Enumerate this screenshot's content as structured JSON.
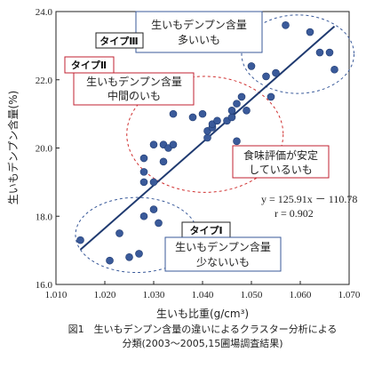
{
  "chart_data": {
    "type": "scatter",
    "xlabel": "生いも比重(g/cm³)",
    "ylabel": "生いもデンプン含量(%)",
    "xlim": [
      1.01,
      1.07
    ],
    "ylim": [
      16.0,
      24.0
    ],
    "xticks": [
      "1.010",
      "1.020",
      "1.030",
      "1.040",
      "1.050",
      "1.060",
      "1.070"
    ],
    "yticks": [
      "16.0",
      "18.0",
      "20.0",
      "22.0",
      "24.0"
    ],
    "grid": false,
    "marker_color": "#3a5a9a",
    "points": [
      [
        1.015,
        17.3
      ],
      [
        1.021,
        16.7
      ],
      [
        1.023,
        17.5
      ],
      [
        1.025,
        16.8
      ],
      [
        1.027,
        16.9
      ],
      [
        1.028,
        18.0
      ],
      [
        1.03,
        18.2
      ],
      [
        1.031,
        17.8
      ],
      [
        1.028,
        19.0
      ],
      [
        1.028,
        19.3
      ],
      [
        1.028,
        19.7
      ],
      [
        1.03,
        19.0
      ],
      [
        1.03,
        20.1
      ],
      [
        1.032,
        20.1
      ],
      [
        1.033,
        20.0
      ],
      [
        1.032,
        19.6
      ],
      [
        1.034,
        20.1
      ],
      [
        1.034,
        21.0
      ],
      [
        1.038,
        20.9
      ],
      [
        1.04,
        21.0
      ],
      [
        1.041,
        20.3
      ],
      [
        1.041,
        20.5
      ],
      [
        1.042,
        20.6
      ],
      [
        1.042,
        20.7
      ],
      [
        1.043,
        20.8
      ],
      [
        1.045,
        20.8
      ],
      [
        1.046,
        20.9
      ],
      [
        1.046,
        21.1
      ],
      [
        1.047,
        20.2
      ],
      [
        1.047,
        21.3
      ],
      [
        1.048,
        21.5
      ],
      [
        1.049,
        21.1
      ],
      [
        1.05,
        22.4
      ],
      [
        1.053,
        22.1
      ],
      [
        1.055,
        22.2
      ],
      [
        1.054,
        21.5
      ],
      [
        1.057,
        23.6
      ],
      [
        1.062,
        23.4
      ],
      [
        1.064,
        22.8
      ],
      [
        1.066,
        22.8
      ],
      [
        1.067,
        22.3
      ]
    ],
    "regression": {
      "slope": 125.91,
      "intercept": -110.78,
      "x_range": [
        1.015,
        1.067
      ]
    },
    "clusters": [
      {
        "cx": 1.0265,
        "cy": 17.45,
        "rx": 0.0125,
        "ry": 1.1,
        "color": "#3a5a9a"
      },
      {
        "cx": 1.0405,
        "cy": 20.4,
        "rx": 0.016,
        "ry": 1.7,
        "color": "#d03030"
      },
      {
        "cx": 1.0595,
        "cy": 22.75,
        "rx": 0.0115,
        "ry": 1.15,
        "color": "#3a5a9a"
      }
    ],
    "annotations": {
      "type1_tag": "タイプⅠ",
      "type2_tag": "タイプⅡ",
      "type3_tag": "タイプⅢ",
      "type1_line1": "生いもデンプン含量",
      "type1_line2": "少ないいも",
      "type2_line1": "生いもデンプン含量",
      "type2_line2": "中間のいも",
      "type3_line1": "生いもデンプン含量",
      "type3_line2": "多いいも",
      "stable_line1": "食味評価が安定",
      "stable_line2": "しているいも",
      "equation": "y = 125.91x － 110.78",
      "r_value": "r = 0.902"
    },
    "caption_line1": "図1　生いもデンプン含量の違いによるクラスター分析による",
    "caption_line2": "分類(2003～2005,15圃場調査結果)"
  }
}
